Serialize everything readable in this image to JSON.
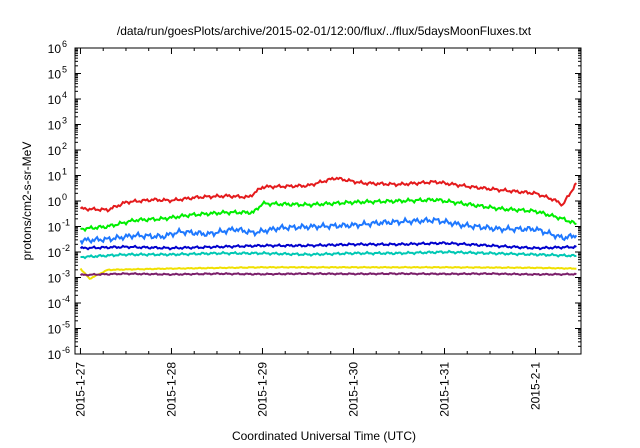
{
  "chart_data": {
    "type": "line",
    "title": "/data/run/goesPlots/archive/2015-02-01/12:00/flux/../flux/5daysMoonFluxes.txt",
    "xlabel": "Coordinated Universal Time (UTC)",
    "ylabel": "protons/cm2-s-sr-MeV",
    "y_scale": "log",
    "ylim_exp": [
      -6,
      6
    ],
    "ytick_exponents": [
      -6,
      -5,
      -4,
      -3,
      -2,
      -1,
      0,
      1,
      2,
      3,
      4,
      5,
      6
    ],
    "xlim_days": [
      -0.06,
      5.5
    ],
    "xticks": [
      {
        "label": "2015-1-27",
        "day": 0
      },
      {
        "label": "2015-1-28",
        "day": 1
      },
      {
        "label": "2015-1-29",
        "day": 2
      },
      {
        "label": "2015-1-30",
        "day": 3
      },
      {
        "label": "2015-1-31",
        "day": 4
      },
      {
        "label": "2015-2-1",
        "day": 5
      }
    ],
    "grid": false,
    "series": [
      {
        "color": "#e41a1c",
        "points": [
          [
            0,
            -0.3
          ],
          [
            0.3,
            -0.35
          ],
          [
            0.5,
            -0.05
          ],
          [
            0.8,
            0.05
          ],
          [
            1.0,
            0.02
          ],
          [
            1.3,
            0.15
          ],
          [
            1.6,
            0.2
          ],
          [
            1.85,
            0.15
          ],
          [
            2.0,
            0.55
          ],
          [
            2.5,
            0.6
          ],
          [
            2.8,
            0.9
          ],
          [
            3.1,
            0.7
          ],
          [
            3.5,
            0.65
          ],
          [
            3.9,
            0.75
          ],
          [
            4.3,
            0.55
          ],
          [
            4.7,
            0.4
          ],
          [
            5.0,
            0.3
          ],
          [
            5.2,
            0.05
          ],
          [
            5.3,
            -0.15
          ],
          [
            5.45,
            0.7
          ]
        ]
      },
      {
        "color": "#00ee00",
        "points": [
          [
            0,
            -1.1
          ],
          [
            0.3,
            -1.0
          ],
          [
            0.6,
            -0.75
          ],
          [
            0.9,
            -0.7
          ],
          [
            1.2,
            -0.55
          ],
          [
            1.6,
            -0.45
          ],
          [
            1.9,
            -0.45
          ],
          [
            2.0,
            -0.1
          ],
          [
            2.5,
            -0.15
          ],
          [
            3.0,
            -0.05
          ],
          [
            3.5,
            0.0
          ],
          [
            3.9,
            0.05
          ],
          [
            4.2,
            -0.1
          ],
          [
            4.6,
            -0.3
          ],
          [
            5.0,
            -0.4
          ],
          [
            5.3,
            -0.7
          ],
          [
            5.45,
            -0.9
          ]
        ]
      },
      {
        "color": "#1e78ff",
        "points": [
          [
            0,
            -1.55
          ],
          [
            0.3,
            -1.5
          ],
          [
            0.6,
            -1.35
          ],
          [
            0.9,
            -1.4
          ],
          [
            1.1,
            -1.2
          ],
          [
            1.4,
            -1.3
          ],
          [
            1.7,
            -1.1
          ],
          [
            1.9,
            -1.25
          ],
          [
            2.2,
            -1.05
          ],
          [
            2.6,
            -1.0
          ],
          [
            3.0,
            -0.95
          ],
          [
            3.3,
            -0.85
          ],
          [
            3.6,
            -0.8
          ],
          [
            3.9,
            -0.75
          ],
          [
            4.2,
            -0.95
          ],
          [
            4.6,
            -1.1
          ],
          [
            5.0,
            -1.1
          ],
          [
            5.3,
            -1.45
          ],
          [
            5.45,
            -1.35
          ]
        ]
      },
      {
        "color": "#0000cd",
        "points": [
          [
            0,
            -1.85
          ],
          [
            0.5,
            -1.8
          ],
          [
            1.0,
            -1.85
          ],
          [
            1.5,
            -1.8
          ],
          [
            2.0,
            -1.75
          ],
          [
            2.5,
            -1.75
          ],
          [
            3.0,
            -1.7
          ],
          [
            3.5,
            -1.7
          ],
          [
            4.0,
            -1.65
          ],
          [
            4.5,
            -1.75
          ],
          [
            5.0,
            -1.85
          ],
          [
            5.45,
            -1.8
          ]
        ]
      },
      {
        "color": "#00c8b4",
        "points": [
          [
            0,
            -2.2
          ],
          [
            0.5,
            -2.1
          ],
          [
            1.0,
            -2.1
          ],
          [
            1.5,
            -2.05
          ],
          [
            2.0,
            -2.05
          ],
          [
            2.5,
            -2.1
          ],
          [
            3.0,
            -2.05
          ],
          [
            3.5,
            -2.05
          ],
          [
            4.0,
            -2.0
          ],
          [
            4.5,
            -2.05
          ],
          [
            5.0,
            -2.1
          ],
          [
            5.45,
            -2.15
          ]
        ]
      },
      {
        "color": "#f0e000",
        "points": [
          [
            0,
            -2.65
          ],
          [
            0.1,
            -3.05
          ],
          [
            0.3,
            -2.7
          ],
          [
            1.0,
            -2.65
          ],
          [
            2.0,
            -2.6
          ],
          [
            3.0,
            -2.6
          ],
          [
            4.0,
            -2.6
          ],
          [
            5.0,
            -2.62
          ],
          [
            5.45,
            -2.65
          ]
        ]
      },
      {
        "color": "#7b1f6a",
        "points": [
          [
            0,
            -2.9
          ],
          [
            0.5,
            -2.85
          ],
          [
            1.0,
            -2.88
          ],
          [
            1.5,
            -2.85
          ],
          [
            2.0,
            -2.87
          ],
          [
            2.5,
            -2.85
          ],
          [
            3.0,
            -2.86
          ],
          [
            3.5,
            -2.85
          ],
          [
            4.0,
            -2.86
          ],
          [
            4.5,
            -2.85
          ],
          [
            5.0,
            -2.88
          ],
          [
            5.45,
            -2.87
          ]
        ]
      }
    ]
  }
}
